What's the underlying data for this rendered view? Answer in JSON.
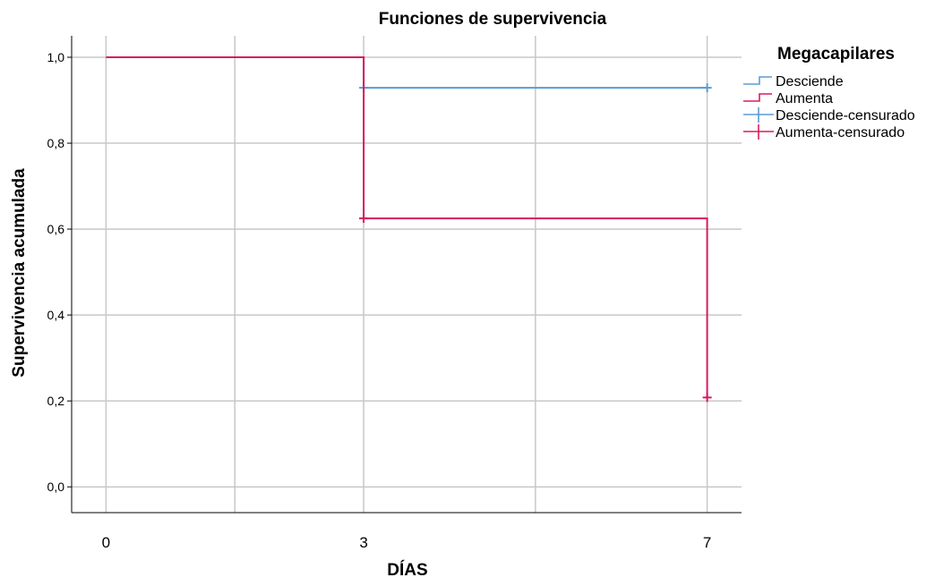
{
  "chart_data": {
    "type": "line",
    "subtype": "kaplan-meier-step",
    "title": "Funciones de supervivencia",
    "xlabel": "DÍAS",
    "ylabel": "Supervivencia acumulada",
    "x_ticks": [
      0,
      3,
      7
    ],
    "x_tick_labels": [
      "0",
      "3",
      "7"
    ],
    "y_ticks": [
      0.0,
      0.2,
      0.4,
      0.6,
      0.8,
      1.0
    ],
    "y_tick_labels": [
      "0,0",
      "0,2",
      "0,4",
      "0,6",
      "0,8",
      "1,0"
    ],
    "x_gridlines": [
      0,
      1.5,
      3,
      5,
      7
    ],
    "ylim": [
      -0.06,
      1.05
    ],
    "xlim": [
      -0.4,
      7.4
    ],
    "grid": true,
    "legend": {
      "title": "Megacapilares",
      "placement": "top-right, outside plot",
      "entries": [
        "Desciende",
        "Aumenta",
        "Desciende-censurado",
        "Aumenta-censurado"
      ]
    },
    "series": [
      {
        "name": "Desciende",
        "color": "#5b9bd5",
        "steps": [
          [
            0,
            1.0
          ],
          [
            3,
            1.0
          ],
          [
            3,
            0.929
          ],
          [
            7,
            0.929
          ]
        ],
        "censored": [
          [
            3,
            0.929
          ],
          [
            7,
            0.929
          ]
        ]
      },
      {
        "name": "Aumenta",
        "color": "#d81b60",
        "steps": [
          [
            0,
            1.0
          ],
          [
            3,
            1.0
          ],
          [
            3,
            0.625
          ],
          [
            7,
            0.625
          ],
          [
            7,
            0.208
          ]
        ],
        "censored": [
          [
            3,
            0.625
          ],
          [
            7,
            0.208
          ]
        ]
      }
    ]
  }
}
